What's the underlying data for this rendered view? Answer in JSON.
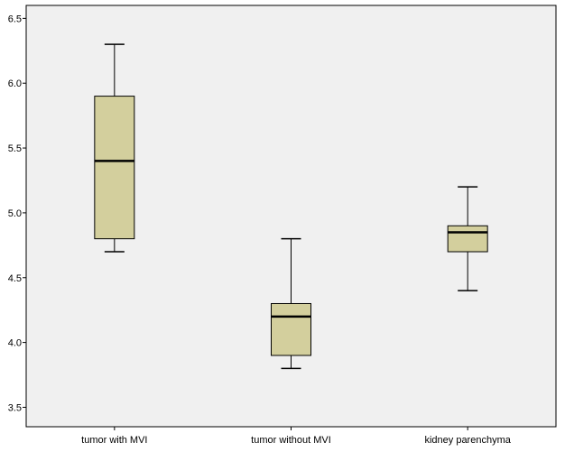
{
  "chart_data": {
    "type": "box",
    "title": "",
    "xlabel": "",
    "ylabel": "",
    "ylim": [
      3.35,
      6.6
    ],
    "yticks": [
      "3.5",
      "4.0",
      "4.5",
      "5.0",
      "5.5",
      "6.0",
      "6.5"
    ],
    "grid": false,
    "legend": "none",
    "categories": [
      "tumor with MVI",
      "tumor without MVI",
      "kidney parenchyma"
    ],
    "boxes": [
      {
        "min": 4.7,
        "q1": 4.8,
        "median": 5.4,
        "q3": 5.9,
        "max": 6.3
      },
      {
        "min": 3.8,
        "q1": 3.9,
        "median": 4.2,
        "q3": 4.3,
        "max": 4.8
      },
      {
        "min": 4.4,
        "q1": 4.7,
        "median": 4.85,
        "q3": 4.9,
        "max": 5.2
      }
    ],
    "colors": {
      "plot_background": "#f0f0f0",
      "box_fill": "#d3cf9d",
      "line": "#000000"
    }
  }
}
